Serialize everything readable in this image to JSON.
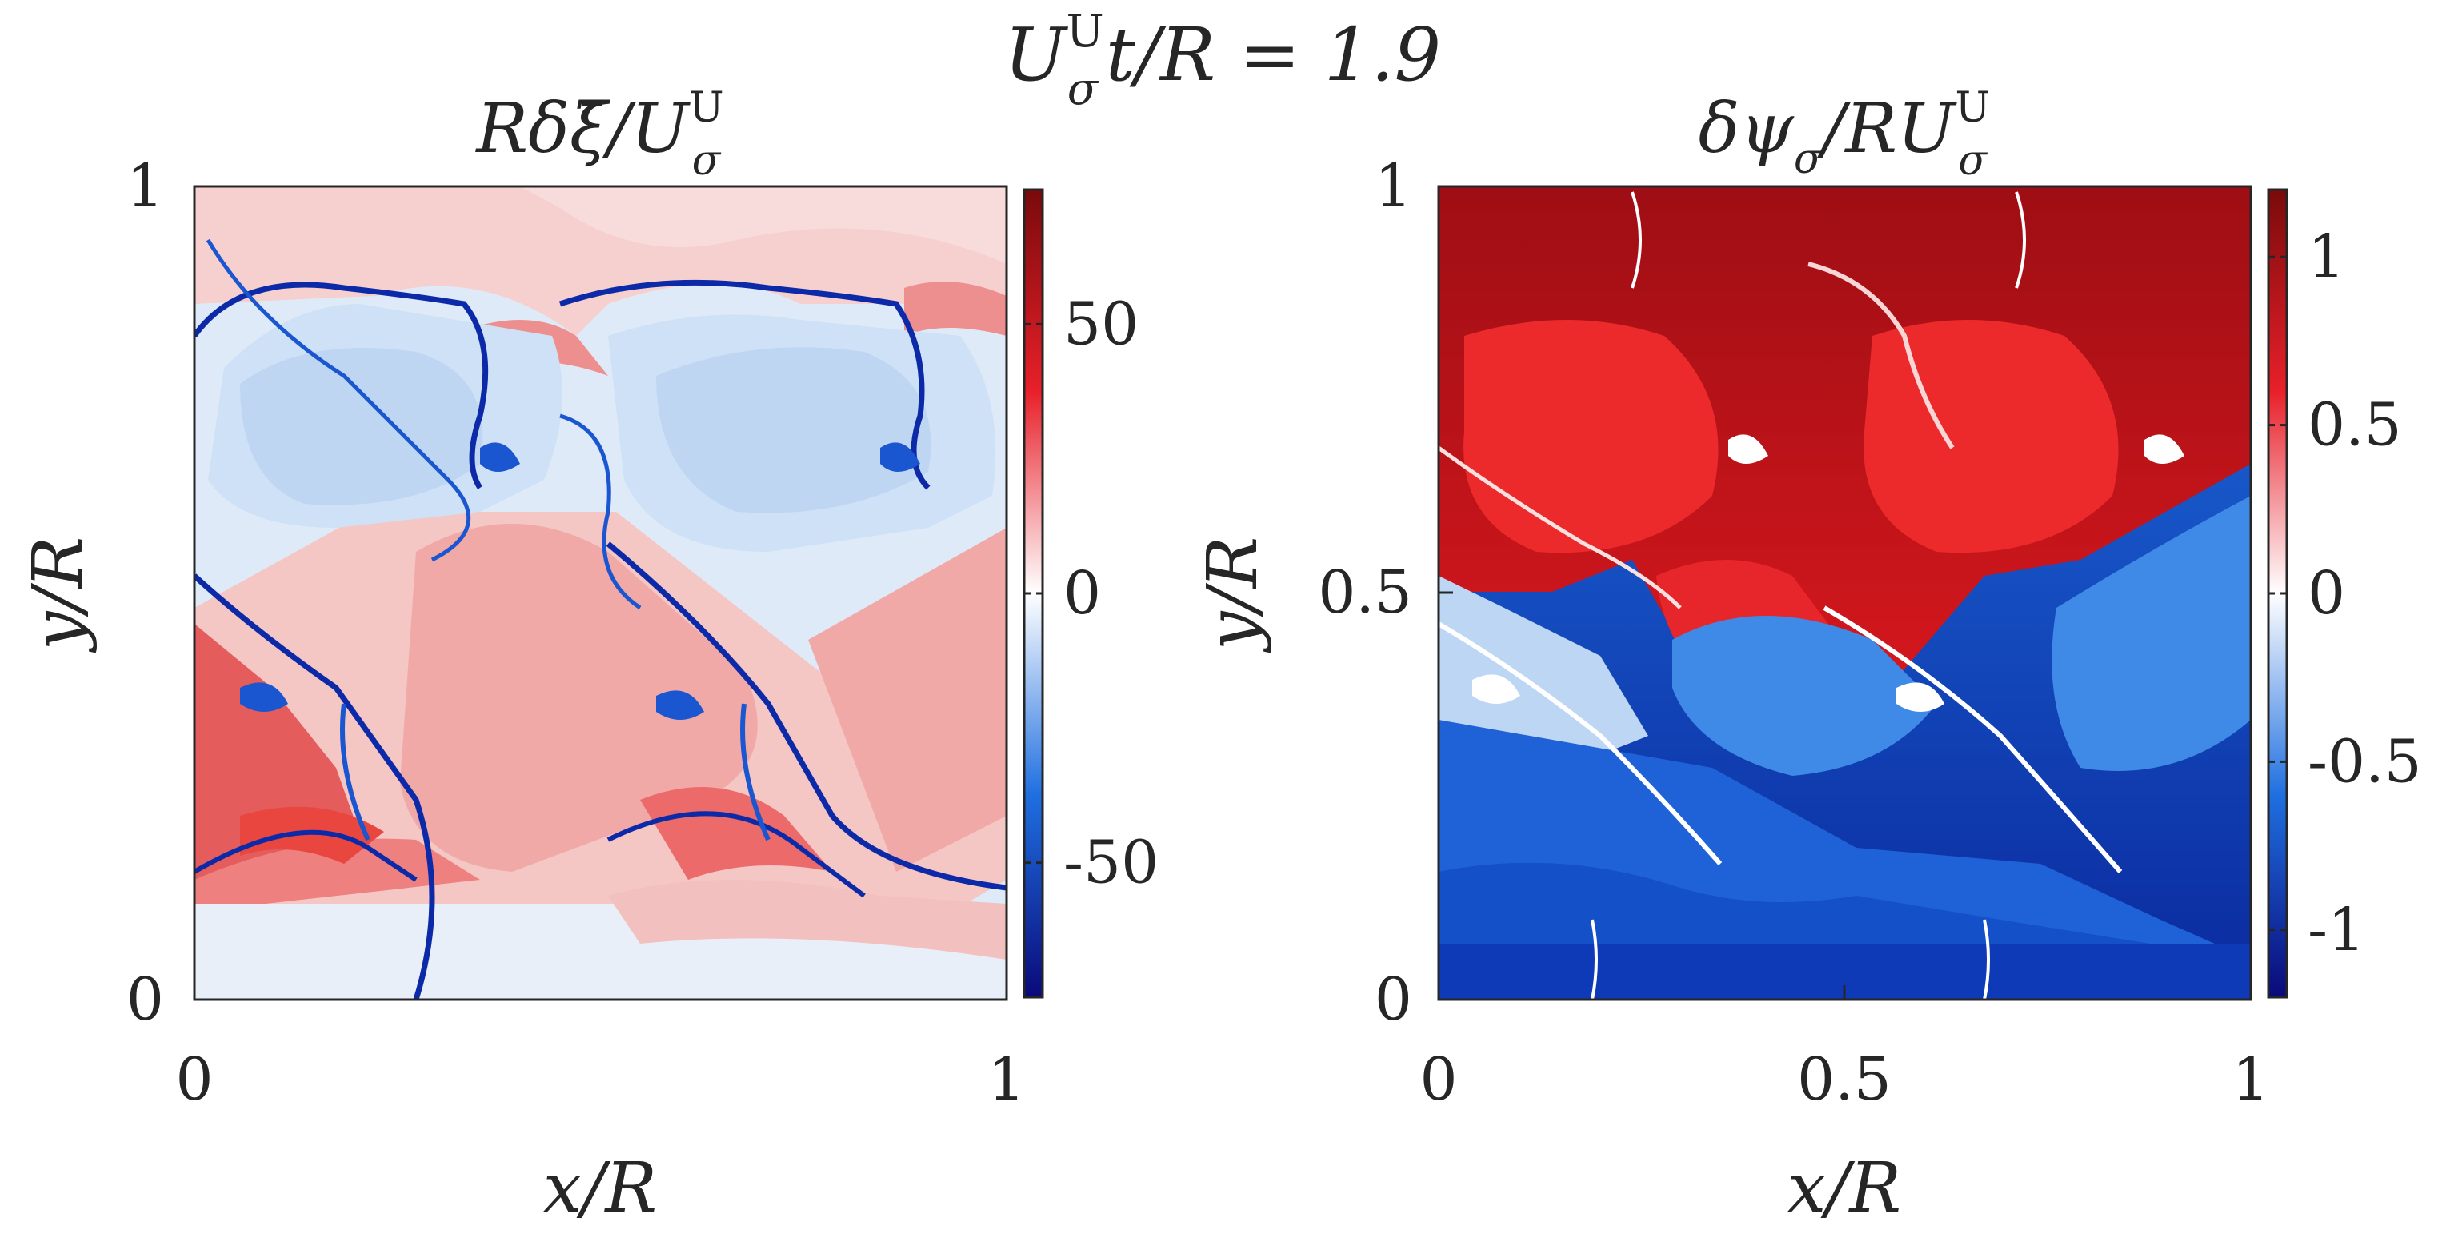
{
  "figure": {
    "suptitle": {
      "lhs": "U",
      "lhs_sup": "U",
      "lhs_sub": "σ",
      "rest": "t/R = 1.9"
    }
  },
  "colors": {
    "cmap_low": "#0a0a7a",
    "cmap_midlow": "#1f6fe0",
    "cmap_mid": "#ffffff",
    "cmap_midhigh": "#e8202a",
    "cmap_high": "#7a0a0a",
    "axes": "#262626"
  },
  "chart_data": [
    {
      "type": "heatmap",
      "title": {
        "main": "Rδξ̄/U",
        "sup": "U",
        "sub": "σ"
      },
      "xlabel": "x/R",
      "ylabel": "y/R",
      "xlim": [
        0,
        1
      ],
      "ylim": [
        0,
        1
      ],
      "xticks": [
        "0",
        "1"
      ],
      "yticks": [
        "0",
        "1"
      ],
      "colorbar": {
        "range": [
          -75,
          75
        ],
        "ticks": [
          "50",
          "0",
          "-50"
        ],
        "tick_values": [
          50,
          0,
          -50
        ]
      }
    },
    {
      "type": "heatmap",
      "title": {
        "main": "δψ",
        "sub1": "σ",
        "mid": "/RU",
        "sup": "U",
        "sub2": "σ"
      },
      "xlabel": "x/R",
      "ylabel": "y/R",
      "xlim": [
        0,
        1
      ],
      "ylim": [
        0,
        1
      ],
      "xticks": [
        "0",
        "0.5",
        "1"
      ],
      "yticks": [
        "0",
        "0.5",
        "1"
      ],
      "colorbar": {
        "range": [
          -1.2,
          1.2
        ],
        "ticks": [
          "1",
          "0.5",
          "0",
          "-0.5",
          "-1"
        ],
        "tick_values": [
          1,
          0.5,
          0,
          -0.5,
          -1
        ]
      }
    }
  ]
}
